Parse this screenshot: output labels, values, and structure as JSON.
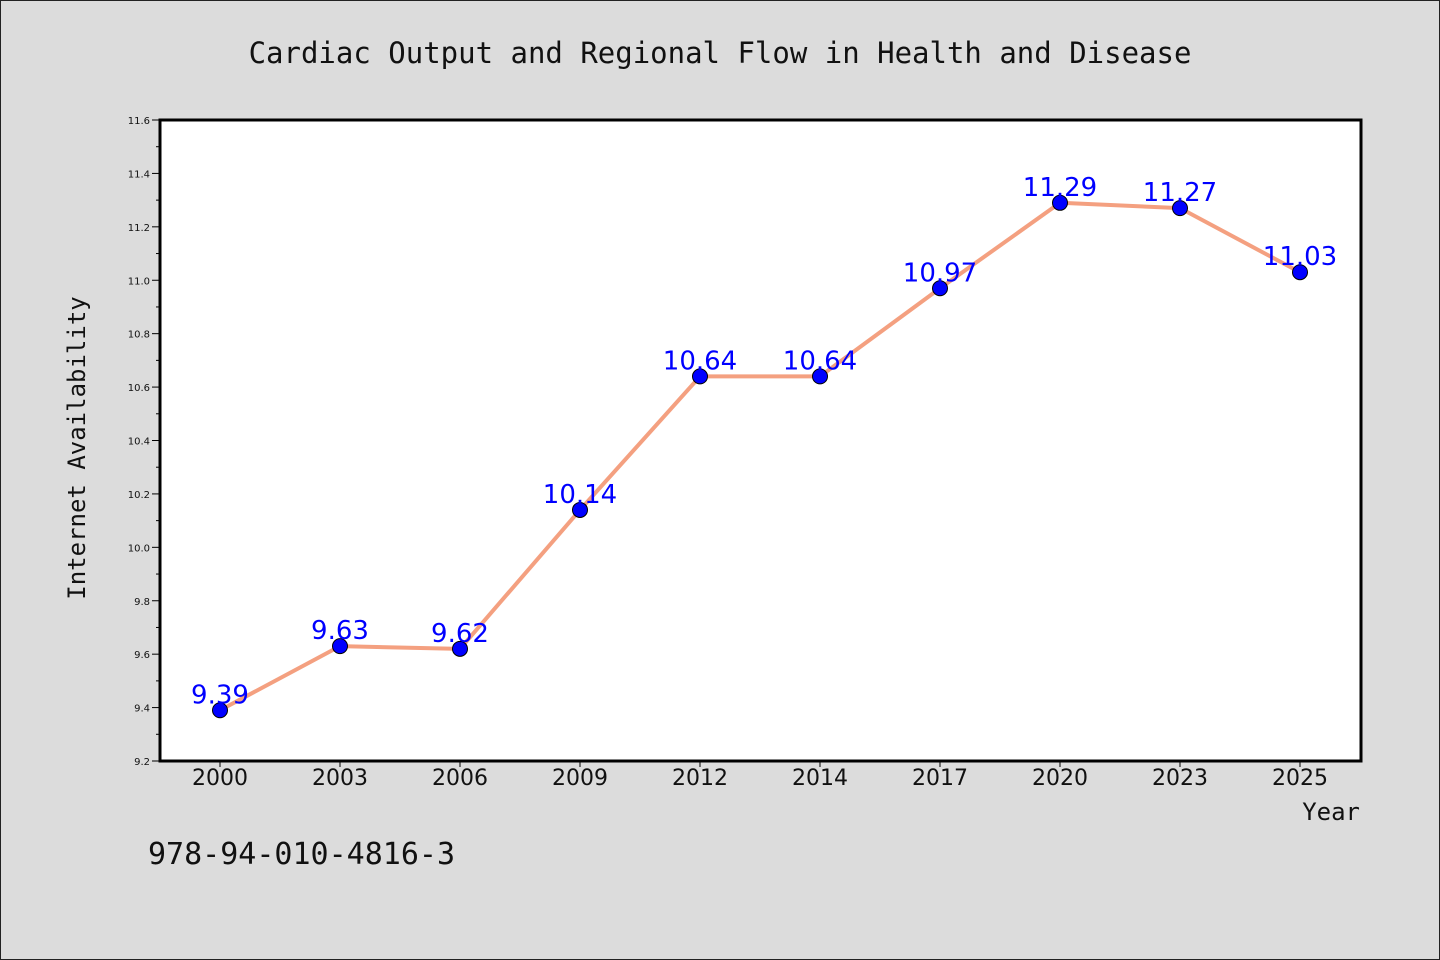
{
  "chart_data": {
    "type": "line",
    "title": "Cardiac Output and Regional Flow in Health and Disease",
    "xlabel": "Year",
    "ylabel": "Internet Availability",
    "categories": [
      "2000",
      "2003",
      "2006",
      "2009",
      "2012",
      "2014",
      "2017",
      "2020",
      "2023",
      "2025"
    ],
    "series": [
      {
        "values": [
          9.39,
          9.63,
          9.62,
          10.14,
          10.64,
          10.64,
          10.97,
          11.29,
          11.27,
          11.03
        ],
        "labels": [
          "9.39",
          "9.63",
          "9.62",
          "10.14",
          "10.64",
          "10.64",
          "10.97",
          "11.29",
          "11.27",
          "11.03"
        ],
        "line_color": "#f4a080",
        "marker_color": "#0000ff"
      }
    ],
    "ylim": [
      9.2,
      11.6
    ],
    "yticks": [
      "9.2",
      "9.4",
      "9.6",
      "9.8",
      "10.0",
      "10.2",
      "10.4",
      "10.6",
      "10.8",
      "11.0",
      "11.2",
      "11.4",
      "11.6"
    ],
    "grid": false,
    "legend": "none"
  },
  "annotation": "978-94-010-4816-3",
  "colors": {
    "background": "#dcdcdc",
    "plot_background": "#ffffff",
    "line": "#f4a080",
    "marker": "#0000ff",
    "data_label": "#0000ff"
  }
}
